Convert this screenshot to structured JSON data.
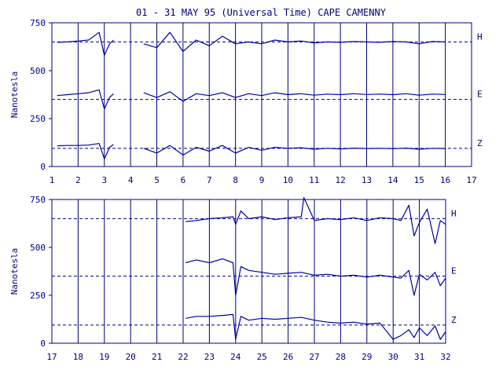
{
  "title": "01 - 31 MAY 95 (Universal Time) CAPE CAMENNY",
  "colors": {
    "ink": "#000080",
    "trace": "#0000a8",
    "background": "#ffffff"
  },
  "chart_data": [
    {
      "type": "line",
      "panel": "top",
      "ylabel": "Nanotesla",
      "ylim": [
        0,
        750
      ],
      "yticks": [
        0,
        250,
        500,
        750
      ],
      "xlim": [
        1,
        17
      ],
      "xticks": [
        "1",
        "2",
        "3",
        "4",
        "5",
        "6",
        "7",
        "8",
        "9",
        "10",
        "11",
        "12",
        "13",
        "14",
        "15",
        "16",
        "17"
      ],
      "grid": "vertical lines at each day",
      "series": [
        {
          "name": "H",
          "baseline": 650,
          "segments": [
            {
              "x": [
                1.2,
                1.6,
                2.0,
                2.4,
                2.8,
                3.0,
                3.2,
                3.35
              ],
              "y": [
                648,
                650,
                655,
                660,
                700,
                580,
                640,
                660
              ]
            },
            {
              "x": [
                4.5,
                5.0,
                5.5,
                6.0,
                6.5,
                7.0,
                7.5,
                8.0,
                8.5,
                9.0,
                9.5,
                10,
                10.5,
                11,
                11.5,
                12,
                12.5,
                13,
                13.5,
                14,
                14.5,
                15,
                15.5,
                16
              ],
              "y": [
                640,
                620,
                700,
                600,
                660,
                630,
                680,
                640,
                650,
                640,
                660,
                650,
                655,
                645,
                650,
                648,
                652,
                650,
                648,
                652,
                650,
                640,
                652,
                650
              ]
            }
          ]
        },
        {
          "name": "E",
          "baseline": 350,
          "segments": [
            {
              "x": [
                1.2,
                1.6,
                2.0,
                2.4,
                2.8,
                3.0,
                3.2,
                3.35
              ],
              "y": [
                370,
                375,
                380,
                385,
                400,
                300,
                360,
                380
              ]
            },
            {
              "x": [
                4.5,
                5.0,
                5.5,
                6.0,
                6.5,
                7.0,
                7.5,
                8.0,
                8.5,
                9.0,
                9.5,
                10,
                10.5,
                11,
                11.5,
                12,
                12.5,
                13,
                13.5,
                14,
                14.5,
                15,
                15.5,
                16
              ],
              "y": [
                385,
                360,
                390,
                340,
                380,
                370,
                385,
                360,
                380,
                370,
                385,
                375,
                380,
                372,
                378,
                375,
                380,
                376,
                378,
                375,
                380,
                372,
                378,
                376
              ]
            }
          ]
        },
        {
          "name": "Z",
          "baseline": 95,
          "segments": [
            {
              "x": [
                1.2,
                1.6,
                2.0,
                2.4,
                2.8,
                3.0,
                3.2,
                3.35
              ],
              "y": [
                108,
                110,
                110,
                112,
                120,
                40,
                100,
                115
              ]
            },
            {
              "x": [
                4.5,
                5.0,
                5.5,
                6.0,
                6.5,
                7.0,
                7.5,
                8.0,
                8.5,
                9.0,
                9.5,
                10,
                10.5,
                11,
                11.5,
                12,
                12.5,
                13,
                13.5,
                14,
                14.5,
                15,
                15.5,
                16
              ],
              "y": [
                95,
                70,
                110,
                60,
                100,
                80,
                110,
                70,
                100,
                85,
                100,
                95,
                98,
                90,
                95,
                92,
                96,
                94,
                95,
                93,
                96,
                90,
                95,
                94
              ]
            }
          ]
        }
      ]
    },
    {
      "type": "line",
      "panel": "bottom",
      "ylabel": "Nanotesla",
      "ylim": [
        0,
        750
      ],
      "yticks": [
        0,
        250,
        500,
        750
      ],
      "xlim": [
        17,
        32
      ],
      "xticks": [
        "17",
        "18",
        "19",
        "20",
        "21",
        "22",
        "23",
        "24",
        "25",
        "26",
        "27",
        "28",
        "29",
        "30",
        "31",
        "32"
      ],
      "grid": "vertical lines at each day",
      "series": [
        {
          "name": "H",
          "baseline": 650,
          "segments": [
            {
              "x": [
                22.1,
                22.5,
                23.0,
                23.5,
                23.9,
                24.0,
                24.2,
                24.5,
                25.0,
                25.5,
                26.0,
                26.5,
                26.6,
                27.0,
                27.5,
                28.0,
                28.5,
                29.0,
                29.5,
                30.0,
                30.3,
                30.6,
                30.8,
                31.0,
                31.3,
                31.6,
                31.8,
                32.0
              ],
              "y": [
                635,
                640,
                650,
                655,
                660,
                620,
                690,
                650,
                660,
                645,
                655,
                660,
                760,
                640,
                650,
                645,
                655,
                640,
                655,
                650,
                640,
                720,
                560,
                630,
                700,
                520,
                640,
                620
              ]
            }
          ]
        },
        {
          "name": "E",
          "baseline": 350,
          "segments": [
            {
              "x": [
                22.1,
                22.5,
                23.0,
                23.5,
                23.9,
                24.0,
                24.2,
                24.5,
                25.0,
                25.5,
                26.0,
                26.5,
                27.0,
                27.5,
                28.0,
                28.5,
                29.0,
                29.5,
                30.0,
                30.3,
                30.6,
                30.8,
                31.0,
                31.3,
                31.6,
                31.8,
                32.0
              ],
              "y": [
                420,
                435,
                420,
                440,
                420,
                250,
                400,
                380,
                370,
                360,
                365,
                370,
                355,
                360,
                350,
                355,
                345,
                355,
                345,
                340,
                380,
                250,
                360,
                330,
                370,
                300,
                340
              ]
            }
          ]
        },
        {
          "name": "Z",
          "baseline": 95,
          "segments": [
            {
              "x": [
                22.1,
                22.5,
                23.0,
                23.5,
                23.9,
                24.0,
                24.2,
                24.5,
                25.0,
                25.5,
                26.0,
                26.5,
                27.0,
                27.5,
                28.0,
                28.5,
                29.0,
                29.5,
                30.0,
                30.3,
                30.6,
                30.8,
                31.0,
                31.3,
                31.6,
                31.8,
                32.0
              ],
              "y": [
                130,
                140,
                140,
                145,
                150,
                20,
                140,
                120,
                130,
                125,
                130,
                135,
                120,
                110,
                105,
                110,
                100,
                105,
                20,
                40,
                70,
                30,
                80,
                40,
                90,
                20,
                60
              ]
            }
          ]
        }
      ]
    }
  ]
}
